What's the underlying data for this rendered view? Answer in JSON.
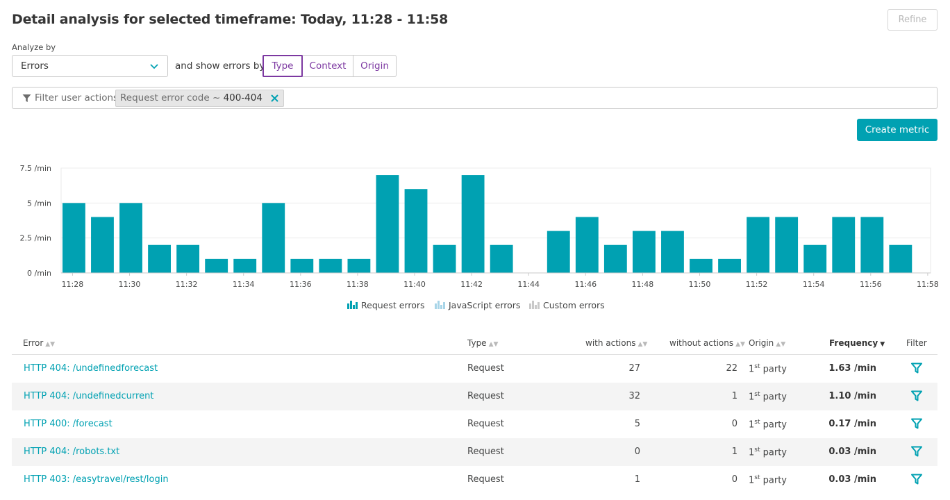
{
  "header": {
    "title": "Detail analysis for selected timeframe: Today, 11:28 - 11:58",
    "refine_label": "Refine"
  },
  "controls": {
    "analyze_label": "Analyze by",
    "analyze_value": "Errors",
    "show_label": "and show errors by",
    "segments": [
      "Type",
      "Context",
      "Origin"
    ],
    "active_segment": "Type"
  },
  "filter": {
    "label": "Filter user actions",
    "chip_key": "Request error code ~",
    "chip_value": "400-404"
  },
  "create_metric_label": "Create metric",
  "colors": {
    "accent": "#00a1b2",
    "purple": "#7c38a1",
    "js_error": "#a8d5e8",
    "custom_error": "#c9c9c9"
  },
  "chart_data": {
    "type": "bar",
    "x": [
      "11:28",
      "11:29",
      "11:30",
      "11:31",
      "11:32",
      "11:33",
      "11:34",
      "11:35",
      "11:36",
      "11:37",
      "11:38",
      "11:39",
      "11:40",
      "11:41",
      "11:42",
      "11:43",
      "11:44",
      "11:45",
      "11:46",
      "11:47",
      "11:48",
      "11:49",
      "11:50",
      "11:51",
      "11:52",
      "11:53",
      "11:54",
      "11:55",
      "11:56",
      "11:57"
    ],
    "x_tick_labels": [
      "11:28",
      "11:30",
      "11:32",
      "11:34",
      "11:36",
      "11:38",
      "11:40",
      "11:42",
      "11:44",
      "11:46",
      "11:48",
      "11:50",
      "11:52",
      "11:54",
      "11:56",
      "11:58"
    ],
    "y_tick_labels": [
      "0 /min",
      "2.5 /min",
      "5 /min",
      "7.5 /min"
    ],
    "y_ticks": [
      0,
      2.5,
      5,
      7.5
    ],
    "ylim": [
      0,
      7.5
    ],
    "series": [
      {
        "name": "Request errors",
        "values": [
          5,
          4,
          5,
          2,
          2,
          1,
          1,
          5,
          1,
          1,
          1,
          7,
          6,
          2,
          7,
          2,
          0,
          3,
          4,
          2,
          3,
          3,
          1,
          1,
          4,
          4,
          2,
          4,
          4,
          2
        ]
      }
    ],
    "legend": [
      "Request errors",
      "JavaScript errors",
      "Custom errors"
    ],
    "legend_position": "bottom-center",
    "grid": true
  },
  "table": {
    "columns": [
      "Error",
      "Type",
      "with actions",
      "without actions",
      "Origin",
      "Frequency",
      "Filter"
    ],
    "rows": [
      {
        "error": "HTTP 404: /undefinedforecast",
        "type": "Request",
        "with": "27",
        "without": "22",
        "origin_n": "1",
        "origin_sup": "st",
        "origin_t": "party",
        "freq": "1.63 /min"
      },
      {
        "error": "HTTP 404: /undefinedcurrent",
        "type": "Request",
        "with": "32",
        "without": "1",
        "origin_n": "1",
        "origin_sup": "st",
        "origin_t": "party",
        "freq": "1.10 /min"
      },
      {
        "error": "HTTP 400: /forecast",
        "type": "Request",
        "with": "5",
        "without": "0",
        "origin_n": "1",
        "origin_sup": "st",
        "origin_t": "party",
        "freq": "0.17 /min"
      },
      {
        "error": "HTTP 404: /robots.txt",
        "type": "Request",
        "with": "0",
        "without": "1",
        "origin_n": "1",
        "origin_sup": "st",
        "origin_t": "party",
        "freq": "0.03 /min"
      },
      {
        "error": "HTTP 403: /easytravel/rest/login",
        "type": "Request",
        "with": "1",
        "without": "0",
        "origin_n": "1",
        "origin_sup": "st",
        "origin_t": "party",
        "freq": "0.03 /min"
      }
    ]
  }
}
